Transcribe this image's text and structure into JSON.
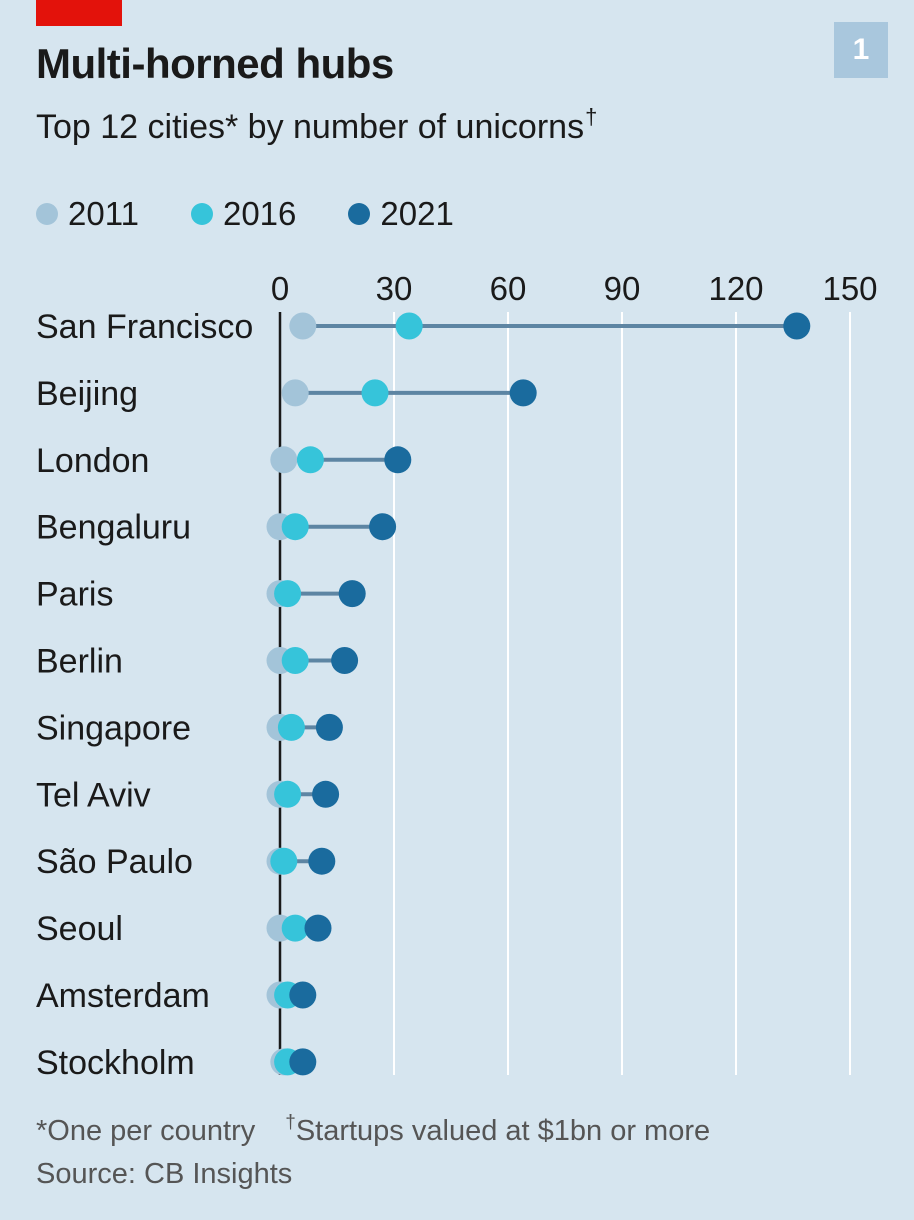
{
  "page_number": "1",
  "colors": {
    "brand_red": "#e3120b",
    "series_2011": "#a3c4d9",
    "series_2016": "#36c4da",
    "series_2021": "#1a6b9e",
    "connector": "#5d85a3",
    "grid": "#ffffff",
    "background": "#d6e5ef"
  },
  "footnotes": {
    "note_one": "*One per country",
    "note_dagger_mark": "†",
    "note_dagger": "Startups valued at $1bn or more",
    "source": "Source: CB Insights"
  },
  "chart_data": {
    "type": "dot",
    "title": "Multi-horned hubs",
    "subtitle": "Top 12 cities* by number of unicorns",
    "subtitle_mark": "†",
    "xlim": [
      0,
      150
    ],
    "x_ticks": [
      "0",
      "30",
      "60",
      "90",
      "120",
      "150"
    ],
    "x_tick_values": [
      0,
      30,
      60,
      90,
      120,
      150
    ],
    "axis_position": "top",
    "grid": true,
    "legend_placement": "top",
    "categories": [
      "San Francisco",
      "Beijing",
      "London",
      "Bengaluru",
      "Paris",
      "Berlin",
      "Singapore",
      "Tel Aviv",
      "São Paulo",
      "Seoul",
      "Amsterdam",
      "Stockholm"
    ],
    "series": [
      {
        "name": "2011",
        "values": [
          6,
          4,
          1,
          0,
          0,
          0,
          0,
          0,
          0,
          0,
          0,
          1
        ]
      },
      {
        "name": "2016",
        "values": [
          34,
          25,
          8,
          4,
          2,
          4,
          3,
          2,
          1,
          4,
          2,
          2
        ]
      },
      {
        "name": "2021",
        "values": [
          136,
          64,
          31,
          27,
          19,
          17,
          13,
          12,
          11,
          10,
          6,
          6
        ]
      }
    ]
  }
}
